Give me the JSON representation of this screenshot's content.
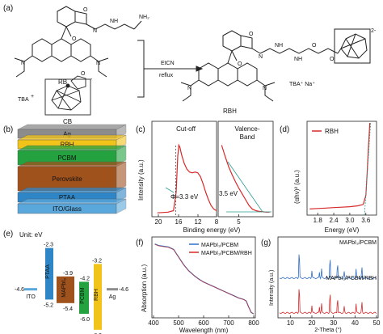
{
  "panels": {
    "a": "(a)",
    "b": "(b)",
    "c": "(c)",
    "d": "(d)",
    "e": "(e)",
    "f": "(f)",
    "g": "(g)"
  },
  "scheme": {
    "rb_label": "RB",
    "cb_label": "CB",
    "rbh_label": "RBH",
    "tba": "TBA",
    "tba_sup": "+",
    "product_counterions": "TBA⁺  Na⁺",
    "conditions_top": "EtCN",
    "conditions_bottom": "reflux",
    "charge": "2-",
    "cb_charge": "-",
    "amine": "NH",
    "amine_end": "NH₂",
    "nitrogen": "N",
    "oxygen": "O"
  },
  "device_stack": {
    "layers": [
      {
        "label": "Ag",
        "color": "#8c8c8c"
      },
      {
        "label": "RBH",
        "color": "#f2c318"
      },
      {
        "label": "PCBM",
        "color": "#23a23f"
      },
      {
        "label": "Perovskite",
        "color": "#a0521d"
      },
      {
        "label": "PTAA",
        "color": "#2f86c6"
      },
      {
        "label": "ITO/Glass",
        "color": "#5aa7dc"
      }
    ]
  },
  "chart_ups_cutoff": {
    "type": "line",
    "title": "Cut-off",
    "ylabel": "Intensity (a.u.)",
    "xticks": [
      "20",
      "16",
      "12",
      "8"
    ],
    "xlim": [
      20,
      8
    ],
    "annotation": "Φ=3.3 eV",
    "x": [
      19,
      17,
      16,
      15.5,
      15.2,
      15.0,
      14.8,
      14.5,
      14.0,
      13.5,
      13.0,
      12.5,
      12.0,
      11.5,
      11.0,
      10.5,
      10.0,
      9.5,
      9.0,
      8.5,
      8.0
    ],
    "y": [
      0.02,
      0.03,
      0.05,
      0.3,
      0.8,
      0.95,
      0.92,
      0.82,
      0.7,
      0.62,
      0.58,
      0.57,
      0.58,
      0.57,
      0.52,
      0.42,
      0.3,
      0.2,
      0.12,
      0.07,
      0.05
    ]
  },
  "chart_ups_vb": {
    "type": "line",
    "title": "Valence-",
    "title2": "Band",
    "xticks": [
      "5"
    ],
    "xlim": [
      8,
      0
    ],
    "annotation": "3.5 eV",
    "x": [
      7.5,
      7,
      6.5,
      6,
      5.5,
      5,
      4.5,
      4,
      3.5,
      3,
      2.5,
      2,
      1.5,
      1,
      0.5
    ],
    "y": [
      0.95,
      0.8,
      0.66,
      0.55,
      0.45,
      0.36,
      0.28,
      0.2,
      0.12,
      0.07,
      0.05,
      0.04,
      0.035,
      0.03,
      0.03
    ]
  },
  "shared_xlabel": "Binding energy (eV)",
  "chart_tauc": {
    "type": "line",
    "legend": "RBH",
    "xlabel": "Energy (eV)",
    "ylabel": "(αhν)² (a.u.)",
    "xticks": [
      "1.8",
      "2.4",
      "3.0",
      "3.6"
    ],
    "xlim": [
      1.4,
      4.0
    ],
    "x": [
      1.5,
      1.8,
      2.1,
      2.4,
      2.7,
      3.0,
      3.3,
      3.5,
      3.6,
      3.65,
      3.7,
      3.75
    ],
    "y": [
      0.05,
      0.055,
      0.06,
      0.065,
      0.07,
      0.075,
      0.085,
      0.1,
      0.2,
      0.45,
      0.75,
      1.0
    ]
  },
  "energy_levels": {
    "unit": "Unit: eV",
    "levels": [
      {
        "name": "ITO",
        "top": -4.6,
        "color": "#5aa7dc"
      },
      {
        "name": "PTAA",
        "top": -2.3,
        "bottom": -5.2,
        "color": "#2f86c6"
      },
      {
        "name": "MAPbI₃",
        "top": -3.9,
        "bottom": -5.4,
        "color": "#a0521d"
      },
      {
        "name": "PCBM",
        "top": -4.2,
        "bottom": -6.0,
        "color": "#23a23f"
      },
      {
        "name": "RBH",
        "top": -3.2,
        "bottom": -6.9,
        "color": "#f2c318"
      },
      {
        "name": "Ag",
        "top": -4.6,
        "color": "#8c8c8c"
      }
    ],
    "value_labels": [
      "-2.3",
      "-3.9",
      "-4.2",
      "-3.2",
      "-4.6",
      "-4.6",
      "-5.2",
      "-5.4",
      "-6.0",
      "-6.9"
    ]
  },
  "chart_absorption": {
    "type": "line",
    "xlabel": "Wavelength (nm)",
    "ylabel": "Absorption (a.u.)",
    "xticks": [
      "400",
      "500",
      "600",
      "700",
      "800"
    ],
    "xlim": [
      400,
      800
    ],
    "series": [
      {
        "name": "MAPbI₃/PCBM",
        "color": "#2f6fc6"
      },
      {
        "name": "MAPbI₃/PCBM/RBH",
        "color": "#d62a2a"
      }
    ],
    "x": [
      405,
      420,
      440,
      460,
      480,
      500,
      520,
      540,
      560,
      580,
      600,
      620,
      640,
      660,
      680,
      700,
      720,
      740,
      760,
      770,
      780,
      790,
      800
    ],
    "y": [
      0.95,
      0.93,
      0.92,
      0.91,
      0.88,
      0.78,
      0.68,
      0.6,
      0.54,
      0.49,
      0.45,
      0.42,
      0.39,
      0.36,
      0.33,
      0.3,
      0.27,
      0.24,
      0.22,
      0.2,
      0.12,
      0.05,
      0.03
    ]
  },
  "chart_xrd": {
    "type": "line",
    "xlabel": "2-Theta (°)",
    "ylabel": "Intensity (a.u.)",
    "xticks": [
      "10",
      "20",
      "30",
      "40",
      "50"
    ],
    "xlim": [
      5,
      50
    ],
    "series": [
      {
        "name": "MAPbI₃/PCBM",
        "color": "#2f6fc6"
      },
      {
        "name": "MAPbI₃/PCBM/RBH",
        "color": "#d62a2a"
      }
    ],
    "peaks": [
      14.1,
      20.0,
      23.5,
      24.5,
      28.4,
      31.9,
      35.0,
      40.5,
      43.2
    ],
    "heights": [
      1.0,
      0.25,
      0.2,
      0.3,
      0.75,
      0.55,
      0.2,
      0.3,
      0.35
    ]
  }
}
